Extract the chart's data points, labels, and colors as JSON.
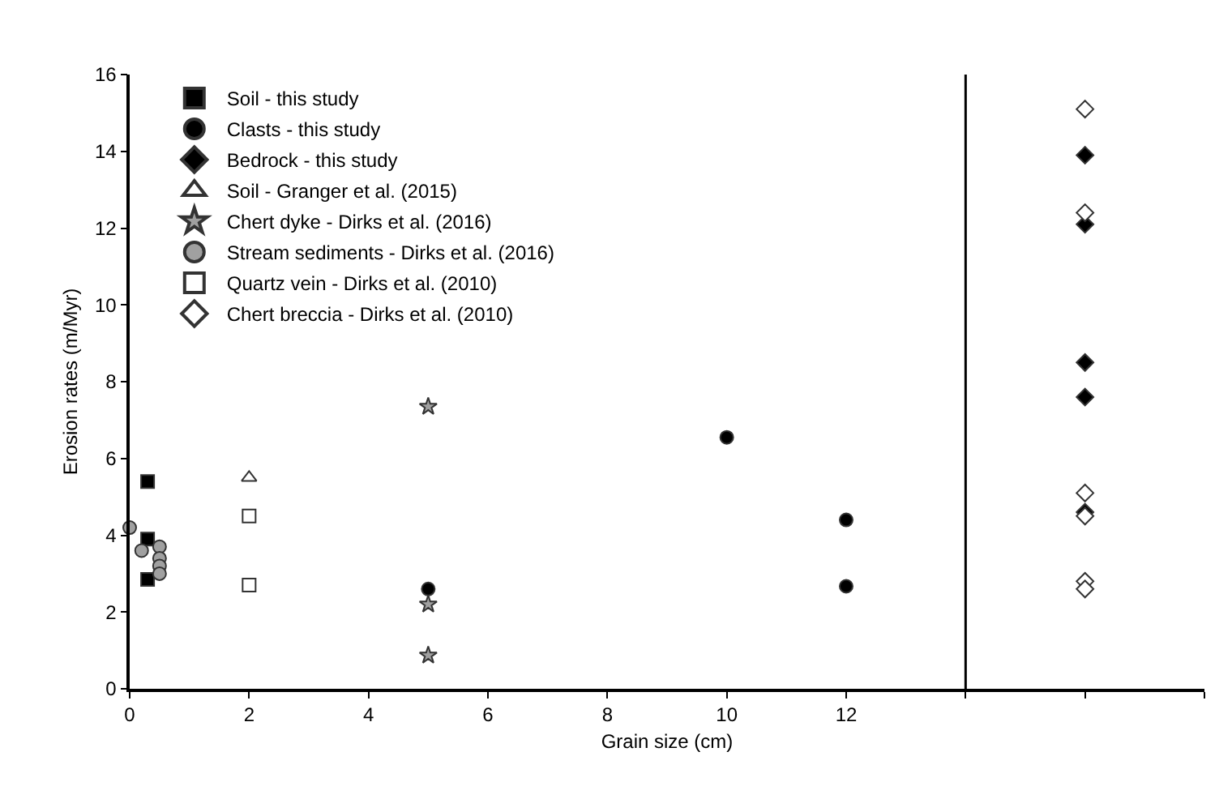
{
  "chart_data": {
    "type": "scatter",
    "xlabel": "Grain size (cm)",
    "ylabel": "Erosion rates (m/Myr)",
    "xlim": [
      0,
      18
    ],
    "xticks": [
      0,
      2,
      4,
      6,
      8,
      10,
      12,
      {
        "value": 14,
        "label": null
      },
      {
        "value": 16,
        "label": null
      },
      {
        "value": 18,
        "label": null
      }
    ],
    "ylim": [
      0,
      16
    ],
    "yticks": [
      0,
      2,
      4,
      6,
      8,
      10,
      12,
      14,
      16
    ],
    "legend": "top left",
    "ref_lines": [
      {
        "axis": "x",
        "value": 14,
        "label": null,
        "color": "#000000"
      }
    ],
    "series": [
      {
        "name": "Soil - this study",
        "color": "#000000",
        "marker": "square",
        "x": [
          0.3,
          0.3,
          0.3
        ],
        "values": [
          5.4,
          3.9,
          2.85
        ]
      },
      {
        "name": "Clasts - this study",
        "color": "#000000",
        "marker": "circle",
        "x": [
          5,
          10,
          12,
          12
        ],
        "values": [
          2.6,
          6.55,
          4.4,
          2.67
        ]
      },
      {
        "name": "Bedrock - this study",
        "color": "#000000",
        "marker": "diamond",
        "x": [
          16,
          16,
          16,
          16,
          16
        ],
        "values": [
          13.9,
          12.1,
          8.5,
          7.6,
          4.6
        ]
      },
      {
        "name": "Soil - Granger et al. (2015)",
        "color": "#ffffff",
        "marker": "triangle",
        "x": [
          2
        ],
        "values": [
          5.5
        ]
      },
      {
        "name": "Chert dyke - Dirks et al. (2016)",
        "color": "#a0a0a0",
        "marker": "star",
        "x": [
          5,
          5,
          5
        ],
        "values": [
          7.35,
          2.2,
          0.87
        ]
      },
      {
        "name": "Stream sediments - Dirks et al. (2016)",
        "color": "#a0a0a0",
        "marker": "circle",
        "x": [
          0,
          0.2,
          0.5,
          0.5,
          0.5,
          0.5
        ],
        "values": [
          4.2,
          3.6,
          3.7,
          3.4,
          3.2,
          3.0
        ]
      },
      {
        "name": "Quartz vein - Dirks et al. (2010)",
        "color": "#ffffff",
        "marker": "square",
        "x": [
          2,
          2
        ],
        "values": [
          4.5,
          2.7
        ]
      },
      {
        "name": "Chert breccia - Dirks et al. (2010)",
        "color": "#ffffff",
        "marker": "diamond",
        "x": [
          16,
          16,
          16,
          16,
          16,
          16
        ],
        "values": [
          15.1,
          12.4,
          5.1,
          4.5,
          2.8,
          2.6
        ]
      }
    ]
  }
}
